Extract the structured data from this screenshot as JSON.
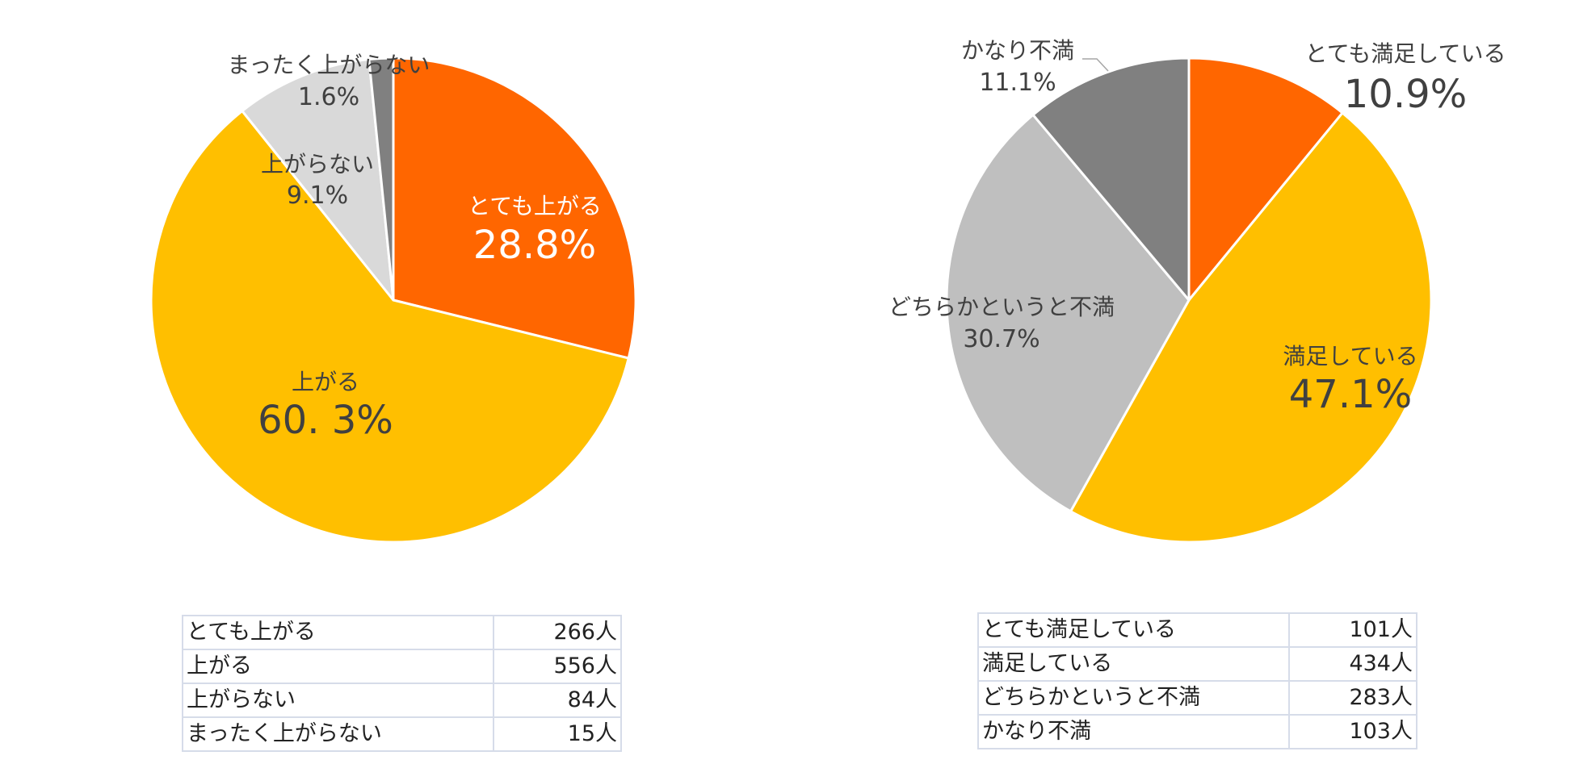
{
  "chart_data": [
    {
      "type": "pie",
      "slices": [
        {
          "label": "とても上がる",
          "percent_label": "28.8%",
          "value": 28.8,
          "color": "#FF6600"
        },
        {
          "label": "上がる",
          "percent_label": "60. 3%",
          "value": 60.3,
          "color": "#FFBF00"
        },
        {
          "label": "上がらない",
          "percent_label": "9.1%",
          "value": 9.1,
          "color": "#D9D9D9"
        },
        {
          "label": "まったく上がらない",
          "percent_label": "1.6%",
          "value": 1.6,
          "color": "#808080"
        }
      ],
      "table": [
        {
          "label": "とても上がる",
          "count": "266人"
        },
        {
          "label": "上がる",
          "count": "556人"
        },
        {
          "label": "上がらない",
          "count": "84人"
        },
        {
          "label": "まったく上がらない",
          "count": "15人"
        }
      ]
    },
    {
      "type": "pie",
      "slices": [
        {
          "label": "とても満足している",
          "percent_label": "10.9%",
          "value": 10.9,
          "color": "#FF6600"
        },
        {
          "label": "満足している",
          "percent_label": "47.1%",
          "value": 47.1,
          "color": "#FFBF00"
        },
        {
          "label": "どちらかというと不満",
          "percent_label": "30.7%",
          "value": 30.7,
          "color": "#BFBFBF"
        },
        {
          "label": "かなり不満",
          "percent_label": "11.1%",
          "value": 11.1,
          "color": "#808080"
        }
      ],
      "table": [
        {
          "label": "とても満足している",
          "count": "101人"
        },
        {
          "label": "満足している",
          "count": "434人"
        },
        {
          "label": "どちらかというと不満",
          "count": "283人"
        },
        {
          "label": "かなり不満",
          "count": "103人"
        }
      ]
    }
  ]
}
